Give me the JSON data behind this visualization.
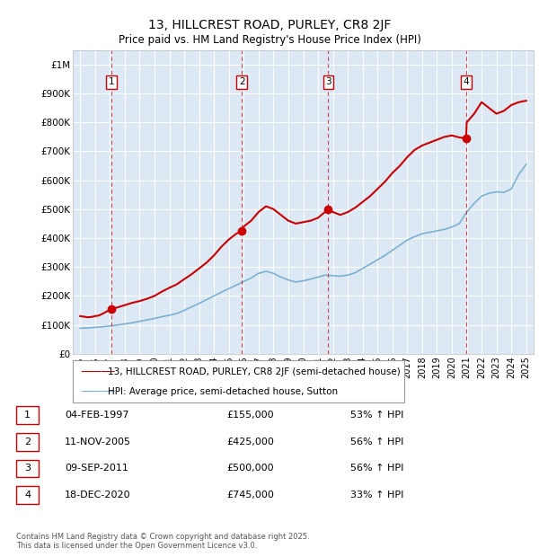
{
  "title": "13, HILLCREST ROAD, PURLEY, CR8 2JF",
  "subtitle": "Price paid vs. HM Land Registry's House Price Index (HPI)",
  "background_color": "#dce9f5",
  "plot_bg_color": "#dce9f5",
  "ylim": [
    0,
    1050000
  ],
  "yticks": [
    0,
    100000,
    200000,
    300000,
    400000,
    500000,
    600000,
    700000,
    800000,
    900000,
    1000000
  ],
  "ytick_labels": [
    "£0",
    "£100K",
    "£200K",
    "£300K",
    "£400K",
    "£500K",
    "£600K",
    "£700K",
    "£800K",
    "£900K",
    "£1M"
  ],
  "xlim_start": 1994.5,
  "xlim_end": 2025.5,
  "xticks": [
    1995,
    1996,
    1997,
    1998,
    1999,
    2000,
    2001,
    2002,
    2003,
    2004,
    2005,
    2006,
    2007,
    2008,
    2009,
    2010,
    2011,
    2012,
    2013,
    2014,
    2015,
    2016,
    2017,
    2018,
    2019,
    2020,
    2021,
    2022,
    2023,
    2024,
    2025
  ],
  "red_line_color": "#cc0000",
  "blue_line_color": "#7ab0d4",
  "sale_color": "#cc0000",
  "annotation_box_color": "#cc0000",
  "dashed_line_color": "#cc0000",
  "grid_color": "#ffffff",
  "purchases": [
    {
      "num": 1,
      "year": 1997.1,
      "price": 155000,
      "date": "04-FEB-1997",
      "pct": "53%"
    },
    {
      "num": 2,
      "year": 2005.87,
      "price": 425000,
      "date": "11-NOV-2005",
      "pct": "56%"
    },
    {
      "num": 3,
      "year": 2011.69,
      "price": 500000,
      "date": "09-SEP-2011",
      "pct": "56%"
    },
    {
      "num": 4,
      "year": 2020.96,
      "price": 745000,
      "date": "18-DEC-2020",
      "pct": "33%"
    }
  ],
  "red_line_x": [
    1995.0,
    1995.25,
    1995.5,
    1995.75,
    1996.0,
    1996.25,
    1996.5,
    1996.75,
    1997.1,
    1997.5,
    1998.0,
    1998.5,
    1999.0,
    1999.5,
    2000.0,
    2000.5,
    2001.0,
    2001.5,
    2002.0,
    2002.5,
    2003.0,
    2003.5,
    2004.0,
    2004.5,
    2005.0,
    2005.5,
    2005.87,
    2006.0,
    2006.5,
    2007.0,
    2007.5,
    2008.0,
    2008.5,
    2009.0,
    2009.5,
    2010.0,
    2010.5,
    2011.0,
    2011.69,
    2012.0,
    2012.5,
    2013.0,
    2013.5,
    2014.0,
    2014.5,
    2015.0,
    2015.5,
    2016.0,
    2016.5,
    2017.0,
    2017.5,
    2018.0,
    2018.5,
    2019.0,
    2019.5,
    2020.0,
    2020.5,
    2020.96,
    2021.0,
    2021.5,
    2022.0,
    2022.5,
    2023.0,
    2023.5,
    2024.0,
    2024.5,
    2025.0
  ],
  "red_line_y": [
    130000,
    128000,
    126000,
    127000,
    130000,
    132000,
    138000,
    145000,
    155000,
    160000,
    168000,
    176000,
    182000,
    190000,
    200000,
    215000,
    228000,
    240000,
    258000,
    275000,
    295000,
    315000,
    340000,
    370000,
    395000,
    415000,
    425000,
    440000,
    460000,
    490000,
    510000,
    500000,
    480000,
    460000,
    450000,
    455000,
    460000,
    470000,
    500000,
    490000,
    480000,
    490000,
    505000,
    525000,
    545000,
    570000,
    595000,
    625000,
    650000,
    680000,
    705000,
    720000,
    730000,
    740000,
    750000,
    755000,
    748000,
    745000,
    800000,
    830000,
    870000,
    850000,
    830000,
    840000,
    860000,
    870000,
    875000
  ],
  "blue_line_x": [
    1995.0,
    1995.5,
    1996.0,
    1996.5,
    1997.0,
    1997.5,
    1998.0,
    1998.5,
    1999.0,
    1999.5,
    2000.0,
    2000.5,
    2001.0,
    2001.5,
    2002.0,
    2002.5,
    2003.0,
    2003.5,
    2004.0,
    2004.5,
    2005.0,
    2005.5,
    2006.0,
    2006.5,
    2007.0,
    2007.5,
    2008.0,
    2008.5,
    2009.0,
    2009.5,
    2010.0,
    2010.5,
    2011.0,
    2011.5,
    2012.0,
    2012.5,
    2013.0,
    2013.5,
    2014.0,
    2014.5,
    2015.0,
    2015.5,
    2016.0,
    2016.5,
    2017.0,
    2017.5,
    2018.0,
    2018.5,
    2019.0,
    2019.5,
    2020.0,
    2020.5,
    2021.0,
    2021.5,
    2022.0,
    2022.5,
    2023.0,
    2023.5,
    2024.0,
    2024.5,
    2025.0
  ],
  "blue_line_y": [
    88000,
    89000,
    91000,
    93000,
    96000,
    99000,
    103000,
    107000,
    112000,
    117000,
    122000,
    128000,
    133000,
    139000,
    150000,
    162000,
    174000,
    187000,
    200000,
    213000,
    225000,
    237000,
    250000,
    262000,
    278000,
    285000,
    278000,
    265000,
    255000,
    248000,
    252000,
    258000,
    265000,
    272000,
    270000,
    268000,
    272000,
    280000,
    295000,
    310000,
    325000,
    340000,
    358000,
    375000,
    393000,
    405000,
    415000,
    420000,
    425000,
    430000,
    438000,
    450000,
    490000,
    520000,
    545000,
    555000,
    560000,
    558000,
    570000,
    620000,
    655000
  ],
  "footer_text": "Contains HM Land Registry data © Crown copyright and database right 2025.\nThis data is licensed under the Open Government Licence v3.0.",
  "legend_label_red": "13, HILLCREST ROAD, PURLEY, CR8 2JF (semi-detached house)",
  "legend_label_blue": "HPI: Average price, semi-detached house, Sutton"
}
